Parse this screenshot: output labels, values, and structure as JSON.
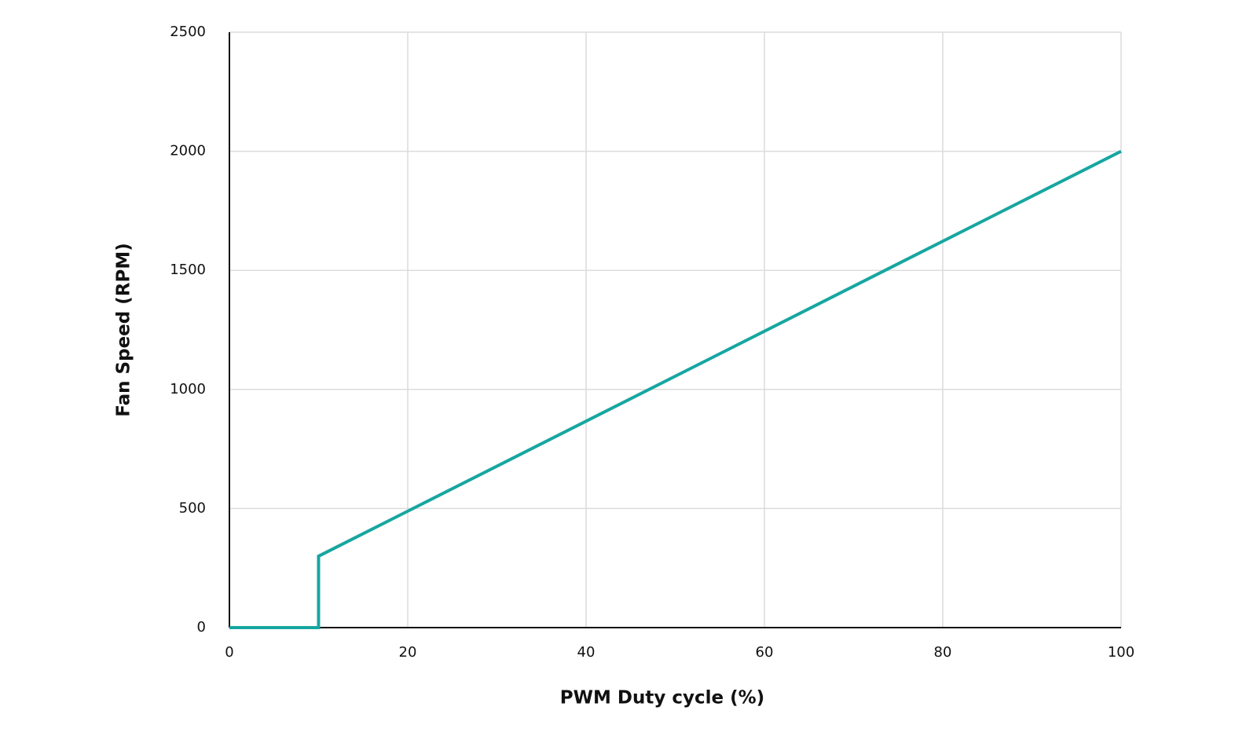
{
  "chart_data": {
    "type": "line",
    "x_label": "PWM Duty cycle (%)",
    "y_label": "Fan Speed (RPM)",
    "series": [
      {
        "x": [
          0,
          10,
          10,
          100
        ],
        "values": [
          0,
          0,
          300,
          2000
        ],
        "color": "#17a6a1"
      }
    ],
    "xlim": [
      0,
      100
    ],
    "xticks": [
      0,
      20,
      40,
      60,
      80,
      100
    ],
    "ylim": [
      0,
      2500
    ],
    "yticks": [
      0,
      500,
      1000,
      1500,
      2000,
      2500
    ],
    "grid": true
  }
}
